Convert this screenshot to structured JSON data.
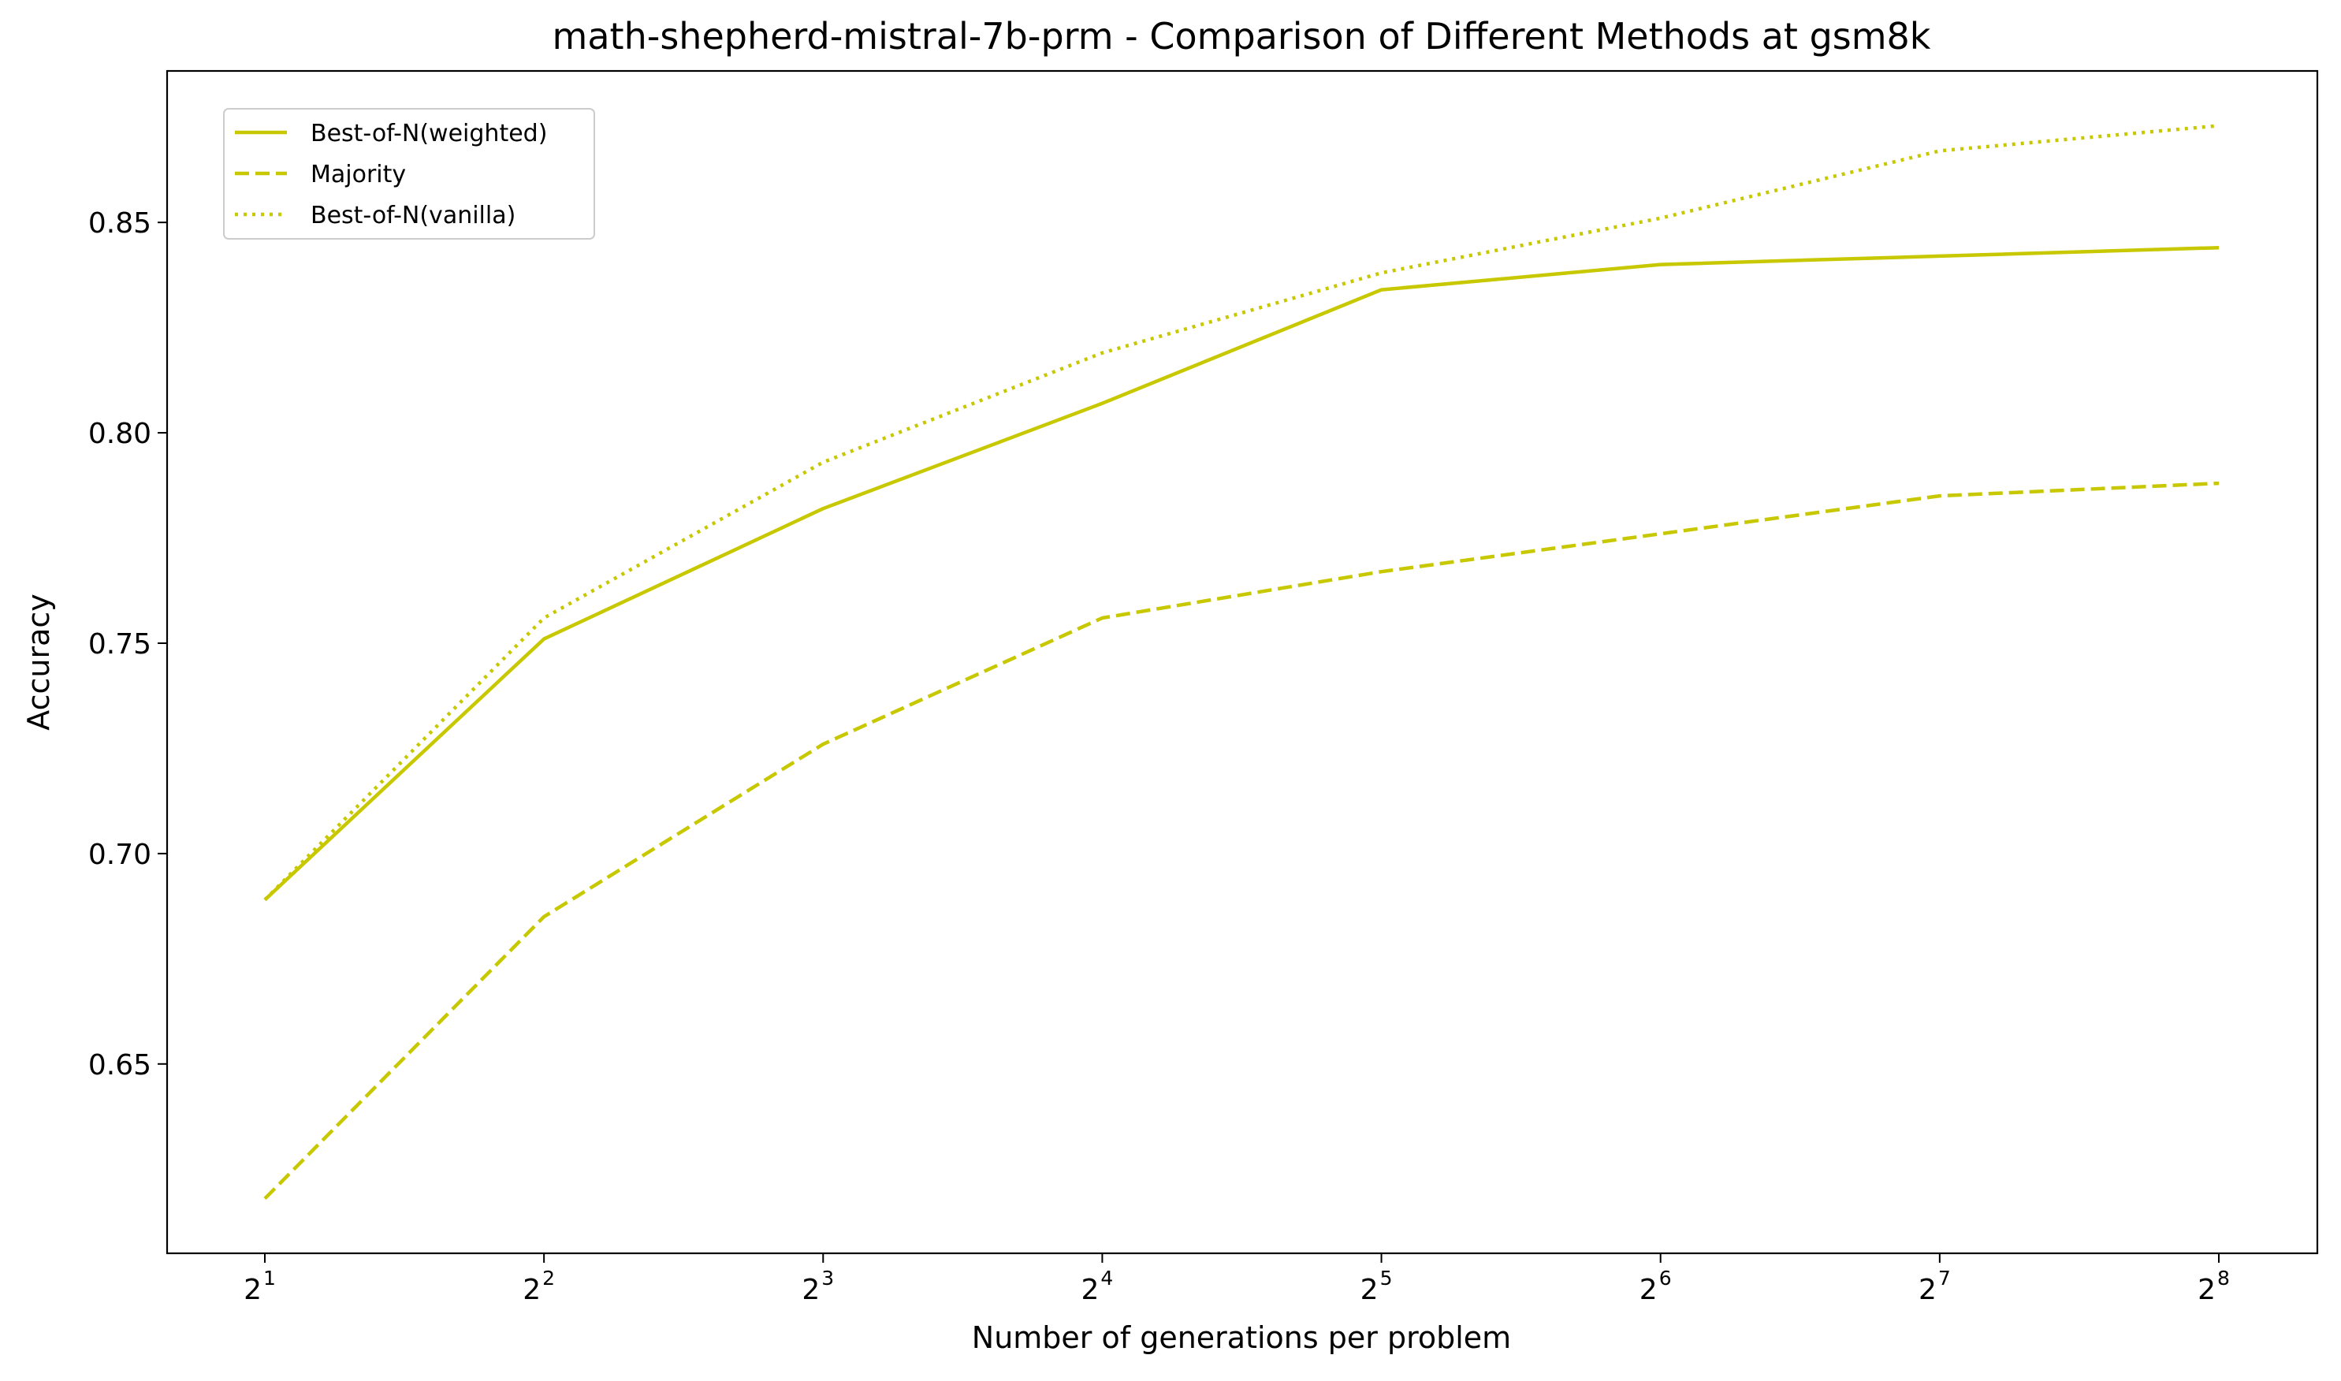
{
  "chart_data": {
    "type": "line",
    "title": "math-shepherd-mistral-7b-prm - Comparison of Different Methods at gsm8k",
    "xlabel": "Number of generations per problem",
    "ylabel": "Accuracy",
    "x_scale": "log2",
    "x": [
      2,
      4,
      8,
      16,
      32,
      64,
      128,
      256
    ],
    "x_tick_labels": [
      {
        "base": "2",
        "exp": "1"
      },
      {
        "base": "2",
        "exp": "2"
      },
      {
        "base": "2",
        "exp": "3"
      },
      {
        "base": "2",
        "exp": "4"
      },
      {
        "base": "2",
        "exp": "5"
      },
      {
        "base": "2",
        "exp": "6"
      },
      {
        "base": "2",
        "exp": "7"
      },
      {
        "base": "2",
        "exp": "8"
      }
    ],
    "y_ticks": [
      "0.65",
      "0.70",
      "0.75",
      "0.80",
      "0.85"
    ],
    "ylim": [
      0.605,
      0.886
    ],
    "grid": false,
    "legend_position": "top-left",
    "series": [
      {
        "name": "Best-of-N(weighted)",
        "style": "solid",
        "color": "#c8c800",
        "values": [
          0.689,
          0.751,
          0.782,
          0.807,
          0.834,
          0.84,
          0.842,
          0.844
        ]
      },
      {
        "name": "Majority",
        "style": "dashed",
        "color": "#c8c800",
        "values": [
          0.618,
          0.685,
          0.726,
          0.756,
          0.767,
          0.776,
          0.785,
          0.788
        ]
      },
      {
        "name": "Best-of-N(vanilla)",
        "style": "dotted",
        "color": "#c8c800",
        "values": [
          0.689,
          0.756,
          0.793,
          0.819,
          0.838,
          0.851,
          0.867,
          0.873
        ]
      }
    ]
  }
}
